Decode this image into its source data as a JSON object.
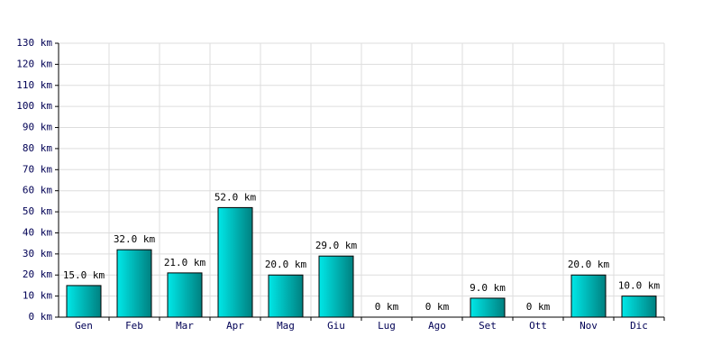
{
  "chart_data": {
    "type": "bar",
    "categories": [
      "Gen",
      "Feb",
      "Mar",
      "Apr",
      "Mag",
      "Giu",
      "Lug",
      "Ago",
      "Set",
      "Ott",
      "Nov",
      "Dic"
    ],
    "values": [
      15,
      32,
      21,
      52,
      20,
      29,
      0,
      0,
      9,
      0,
      20,
      10
    ],
    "value_labels": [
      "15.0 km",
      "32.0 km",
      "21.0 km",
      "52.0 km",
      "20.0 km",
      "29.0 km",
      "0 km",
      "0 km",
      "9.0 km",
      "0 km",
      "20.0 km",
      "10.0 km"
    ],
    "color": "#00e8e8",
    "ylim": [
      0,
      130
    ],
    "yticks": [
      {
        "value": 0,
        "label": "0 km"
      },
      {
        "value": 10,
        "label": "10 km"
      },
      {
        "value": 20,
        "label": "20 km"
      },
      {
        "value": 30,
        "label": "30 km"
      },
      {
        "value": 40,
        "label": "40 km"
      },
      {
        "value": 50,
        "label": "50 km"
      },
      {
        "value": 60,
        "label": "60 km"
      },
      {
        "value": 70,
        "label": "70 km"
      },
      {
        "value": 80,
        "label": "80 km"
      },
      {
        "value": 90,
        "label": "90 km"
      },
      {
        "value": 100,
        "label": "100 km"
      },
      {
        "value": 110,
        "label": "110 km"
      },
      {
        "value": 120,
        "label": "120 km"
      },
      {
        "value": 130,
        "label": "130 km"
      }
    ],
    "grid": true
  }
}
